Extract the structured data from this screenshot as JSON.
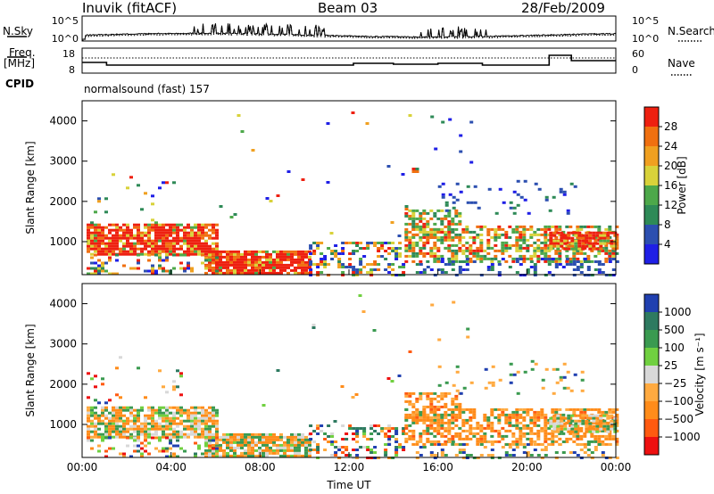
{
  "header": {
    "station": "Inuvik (fitACF)",
    "beam": "Beam 03",
    "date": "28/Feb/2009"
  },
  "noise_panel": {
    "left_label": "N.Sky",
    "right_label": "N.Search",
    "ticks": [
      "10^5",
      "10^0"
    ]
  },
  "freq_panel": {
    "left_label_1": "Freq.",
    "left_label_2": "[MHz]",
    "left_ticks": [
      "18",
      "8"
    ],
    "right_label": "Nave",
    "right_ticks": [
      "60",
      "0"
    ]
  },
  "cpid": {
    "label": "CPID",
    "mode": "normalsound (fast) 157"
  },
  "colors": {
    "power": [
      "#1f1fe6",
      "#2c4fb0",
      "#2e8a57",
      "#4da84a",
      "#d8d23a",
      "#f0a020",
      "#f07010",
      "#ee2010"
    ],
    "velocity": [
      "#ee1010",
      "#ff5a10",
      "#ff8c1a",
      "#ffaa40",
      "#d8d8d8",
      "#70d040",
      "#3a9a50",
      "#2e7a60",
      "#2040b0"
    ],
    "ground_scatter": "#c8c8c8"
  },
  "chart_data": [
    {
      "type": "heatmap",
      "name": "power",
      "ylabel": "Slant Range [km]",
      "x_range_hours": [
        0,
        24
      ],
      "ylim": [
        180,
        4500
      ],
      "y_ticks": [
        1000,
        2000,
        3000,
        4000
      ],
      "colorbar_label": "Power [dB]",
      "colorbar_ticks": [
        4,
        8,
        12,
        16,
        20,
        24,
        28
      ],
      "colorbar_range": [
        0,
        32
      ]
    },
    {
      "type": "heatmap",
      "name": "velocity",
      "ylabel": "Slant Range [km]",
      "xlabel": "Time UT",
      "x_ticks": [
        "00:00",
        "04:00",
        "08:00",
        "12:00",
        "16:00",
        "20:00",
        "00:00"
      ],
      "x_range_hours": [
        0,
        24
      ],
      "ylim": [
        180,
        4500
      ],
      "y_ticks": [
        1000,
        2000,
        3000,
        4000
      ],
      "colorbar_label": "Velocity [m s⁻¹]",
      "colorbar_ticks": [
        "1000",
        "500",
        "100",
        "25",
        "−25",
        "−100",
        "−500",
        "−1000"
      ]
    }
  ]
}
